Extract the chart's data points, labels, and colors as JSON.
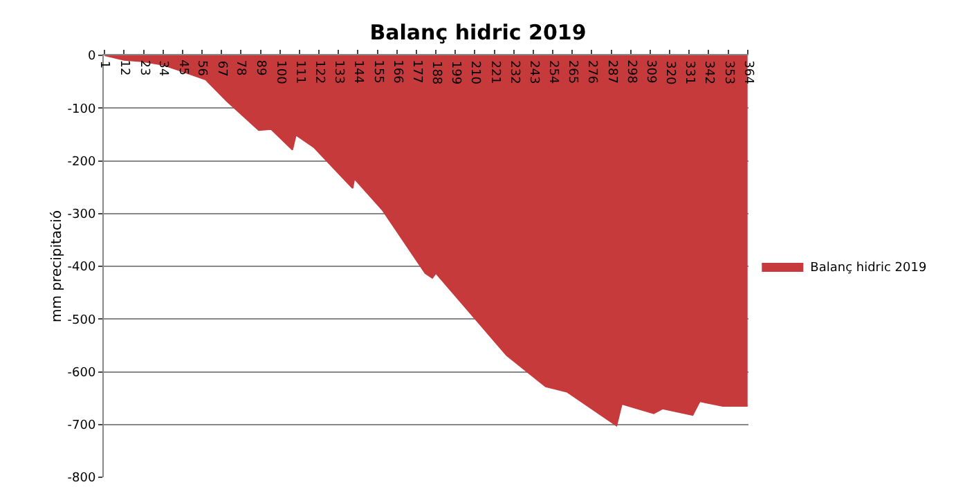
{
  "chart_data": {
    "type": "area",
    "title": "Balanç hidric 2019",
    "ylabel": "mm precipitació",
    "series": [
      {
        "name": "Balanç hidric 2019",
        "color": "#c73a3c",
        "x": [
          1,
          12,
          21,
          34,
          58,
          70,
          88,
          95,
          107,
          109,
          119,
          141,
          142,
          158,
          182,
          186,
          188,
          228,
          250,
          262,
          290,
          293,
          311,
          316,
          333,
          337,
          350,
          362,
          364
        ],
        "values": [
          0,
          -9,
          -11,
          -18,
          -46,
          -87,
          -142,
          -140,
          -179,
          -151,
          -174,
          -252,
          -234,
          -294,
          -413,
          -422,
          -413,
          -569,
          -628,
          -638,
          -702,
          -661,
          -679,
          -670,
          -682,
          -656,
          -665,
          -665,
          -665
        ]
      }
    ],
    "xlim": [
      0.5,
      364.5
    ],
    "xticks": [
      1,
      12,
      23,
      34,
      45,
      56,
      67,
      78,
      89,
      100,
      111,
      122,
      133,
      144,
      155,
      166,
      177,
      188,
      199,
      210,
      221,
      232,
      243,
      254,
      265,
      276,
      287,
      298,
      309,
      320,
      331,
      342,
      353,
      364
    ],
    "ylim": [
      -800,
      0
    ],
    "yticks": [
      -800,
      -700,
      -600,
      -500,
      -400,
      -300,
      -200,
      -100,
      0
    ],
    "grid": "y",
    "legend": "right",
    "marker": "none"
  }
}
